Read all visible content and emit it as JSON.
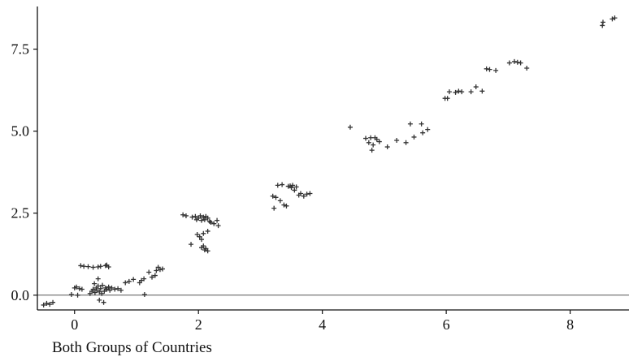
{
  "chart_data": {
    "type": "scatter",
    "xlabel": "Both Groups of Countries",
    "ylabel": "",
    "xlim": [
      -0.6,
      8.95
    ],
    "ylim": [
      -0.45,
      8.8
    ],
    "x_ticks": [
      0,
      2,
      4,
      6,
      8
    ],
    "x_tick_labels": [
      "0",
      "2",
      "4",
      "6",
      "8"
    ],
    "y_ticks": [
      0,
      2.5,
      5,
      7.5
    ],
    "y_tick_labels": [
      "0.0",
      "2.5",
      "5.0",
      "7.5"
    ],
    "reference_line_y": 0,
    "marker": "+",
    "colors": {
      "marker": "#333333",
      "axis": "#111111",
      "reference": "#555555"
    },
    "series": [
      {
        "points": [
          [
            -0.5,
            -0.3
          ],
          [
            -0.45,
            -0.25
          ],
          [
            -0.4,
            -0.28
          ],
          [
            -0.35,
            -0.22
          ],
          [
            -0.05,
            0.02
          ],
          [
            0.0,
            0.22
          ],
          [
            0.03,
            0.25
          ],
          [
            0.05,
            0.0
          ],
          [
            0.08,
            0.2
          ],
          [
            0.12,
            0.18
          ],
          [
            0.1,
            0.9
          ],
          [
            0.15,
            0.88
          ],
          [
            0.22,
            0.87
          ],
          [
            0.3,
            0.85
          ],
          [
            0.38,
            0.86
          ],
          [
            0.42,
            0.88
          ],
          [
            0.5,
            0.9
          ],
          [
            0.55,
            0.86
          ],
          [
            0.52,
            0.92
          ],
          [
            0.25,
            0.05
          ],
          [
            0.28,
            0.12
          ],
          [
            0.3,
            0.18
          ],
          [
            0.33,
            0.08
          ],
          [
            0.35,
            0.22
          ],
          [
            0.36,
            0.15
          ],
          [
            0.38,
            0.28
          ],
          [
            0.4,
            0.1
          ],
          [
            0.42,
            0.2
          ],
          [
            0.44,
            0.05
          ],
          [
            0.45,
            0.3
          ],
          [
            0.48,
            0.12
          ],
          [
            0.5,
            0.22
          ],
          [
            0.52,
            0.18
          ],
          [
            0.55,
            0.25
          ],
          [
            0.57,
            0.15
          ],
          [
            0.6,
            0.22
          ],
          [
            0.65,
            0.18
          ],
          [
            0.7,
            0.2
          ],
          [
            0.75,
            0.15
          ],
          [
            0.32,
            0.35
          ],
          [
            0.38,
            0.5
          ],
          [
            0.4,
            -0.15
          ],
          [
            0.47,
            -0.22
          ],
          [
            0.82,
            0.38
          ],
          [
            0.88,
            0.42
          ],
          [
            0.95,
            0.48
          ],
          [
            1.05,
            0.38
          ],
          [
            1.08,
            0.45
          ],
          [
            1.12,
            0.5
          ],
          [
            1.13,
            0.02
          ],
          [
            1.2,
            0.7
          ],
          [
            1.25,
            0.55
          ],
          [
            1.3,
            0.6
          ],
          [
            1.32,
            0.75
          ],
          [
            1.35,
            0.85
          ],
          [
            1.38,
            0.78
          ],
          [
            1.42,
            0.8
          ],
          [
            1.75,
            2.45
          ],
          [
            1.8,
            2.42
          ],
          [
            1.88,
            1.55
          ],
          [
            1.9,
            2.38
          ],
          [
            1.95,
            2.4
          ],
          [
            1.97,
            2.3
          ],
          [
            2.0,
            2.35
          ],
          [
            2.03,
            2.42
          ],
          [
            2.05,
            2.28
          ],
          [
            2.08,
            2.38
          ],
          [
            2.1,
            2.3
          ],
          [
            2.12,
            2.4
          ],
          [
            2.15,
            2.35
          ],
          [
            2.18,
            2.25
          ],
          [
            2.2,
            2.22
          ],
          [
            2.25,
            2.18
          ],
          [
            2.3,
            2.28
          ],
          [
            2.32,
            2.12
          ],
          [
            1.98,
            1.85
          ],
          [
            2.02,
            1.78
          ],
          [
            2.05,
            1.7
          ],
          [
            2.08,
            1.88
          ],
          [
            2.15,
            1.95
          ],
          [
            2.05,
            1.45
          ],
          [
            2.08,
            1.5
          ],
          [
            2.1,
            1.38
          ],
          [
            2.12,
            1.42
          ],
          [
            2.15,
            1.35
          ],
          [
            3.2,
            3.02
          ],
          [
            3.22,
            2.65
          ],
          [
            3.25,
            2.98
          ],
          [
            3.28,
            3.35
          ],
          [
            3.32,
            2.88
          ],
          [
            3.35,
            3.37
          ],
          [
            3.38,
            2.75
          ],
          [
            3.42,
            2.72
          ],
          [
            3.45,
            3.32
          ],
          [
            3.48,
            3.33
          ],
          [
            3.5,
            3.28
          ],
          [
            3.52,
            3.35
          ],
          [
            3.55,
            3.2
          ],
          [
            3.58,
            3.3
          ],
          [
            3.62,
            3.05
          ],
          [
            3.65,
            3.1
          ],
          [
            3.7,
            3.02
          ],
          [
            3.75,
            3.08
          ],
          [
            3.8,
            3.1
          ],
          [
            4.45,
            5.12
          ],
          [
            4.7,
            4.78
          ],
          [
            4.75,
            4.65
          ],
          [
            4.78,
            4.8
          ],
          [
            4.8,
            4.42
          ],
          [
            4.82,
            4.58
          ],
          [
            4.85,
            4.8
          ],
          [
            4.88,
            4.75
          ],
          [
            4.92,
            4.68
          ],
          [
            5.05,
            4.52
          ],
          [
            5.2,
            4.72
          ],
          [
            5.35,
            4.65
          ],
          [
            5.42,
            5.22
          ],
          [
            5.48,
            4.82
          ],
          [
            5.6,
            5.22
          ],
          [
            5.62,
            4.95
          ],
          [
            5.7,
            5.05
          ],
          [
            5.98,
            6.0
          ],
          [
            6.02,
            6.0
          ],
          [
            6.05,
            6.2
          ],
          [
            6.15,
            6.18
          ],
          [
            6.2,
            6.22
          ],
          [
            6.25,
            6.2
          ],
          [
            6.4,
            6.2
          ],
          [
            6.48,
            6.35
          ],
          [
            6.58,
            6.22
          ],
          [
            6.65,
            6.9
          ],
          [
            6.7,
            6.88
          ],
          [
            6.8,
            6.85
          ],
          [
            7.02,
            7.08
          ],
          [
            7.1,
            7.12
          ],
          [
            7.15,
            7.1
          ],
          [
            7.2,
            7.08
          ],
          [
            7.3,
            6.92
          ],
          [
            8.52,
            8.22
          ],
          [
            8.53,
            8.32
          ],
          [
            8.68,
            8.42
          ],
          [
            8.72,
            8.45
          ]
        ]
      }
    ]
  }
}
